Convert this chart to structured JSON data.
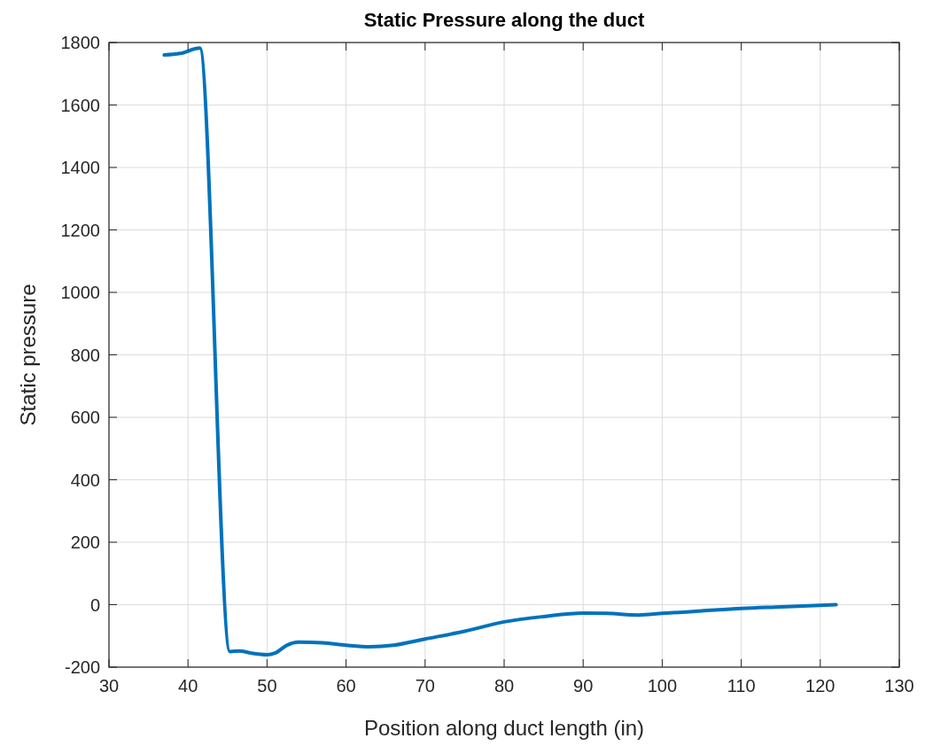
{
  "chart_data": {
    "type": "line",
    "title": "Static Pressure along the duct",
    "xlabel": "Position along duct length (in)",
    "ylabel": "Static pressure",
    "x": [
      37,
      39,
      41.5,
      45.3,
      46.5,
      48,
      50,
      51,
      52.5,
      54,
      57,
      60,
      63,
      66,
      70,
      75,
      80,
      85,
      90,
      93,
      97,
      100,
      105,
      110,
      115,
      122
    ],
    "series": [
      {
        "color": "#0072bd",
        "values": [
          1760,
          1765,
          1782,
          -150,
          -148,
          -155,
          -160,
          -155,
          -130,
          -120,
          -122,
          -130,
          -135,
          -130,
          -110,
          -85,
          -55,
          -38,
          -27,
          -28,
          -33,
          -28,
          -20,
          -12,
          -7,
          0
        ]
      }
    ],
    "xlim": [
      30,
      130
    ],
    "xticks": [
      30,
      40,
      50,
      60,
      70,
      80,
      90,
      100,
      110,
      120,
      130
    ],
    "ylim": [
      -200,
      1800
    ],
    "yticks": [
      -200,
      0,
      200,
      400,
      600,
      800,
      1000,
      1200,
      1400,
      1600,
      1800
    ],
    "grid": true,
    "line_style": "solid",
    "marker": "none"
  }
}
